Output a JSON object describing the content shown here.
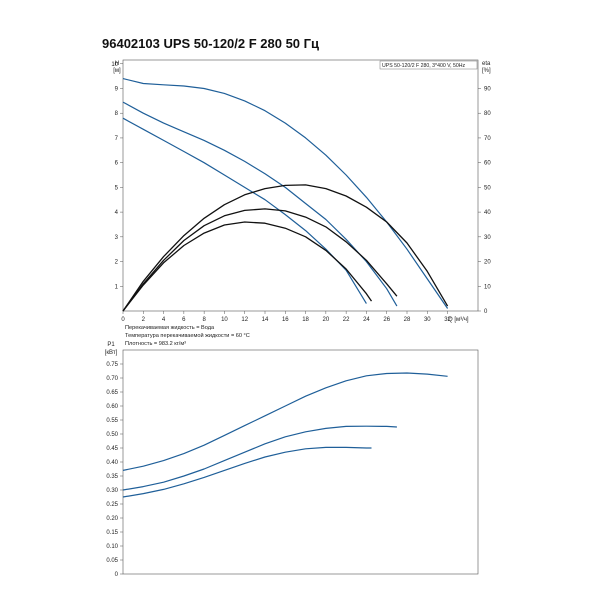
{
  "title": "96402103 UPS 50-120/2 F 280 50 Гц",
  "chart_data": [
    {
      "type": "line",
      "legend_box": "UPS 50-120/2 F 280, 3*400 V, 50Hz",
      "y_label_top": "H",
      "y_unit": "[м]",
      "y2_label_top": "eta",
      "y2_unit": "[%]",
      "x_label": "Q [м³/ч]",
      "xlim": [
        0,
        35
      ],
      "ylim": [
        0,
        10
      ],
      "y2lim": [
        0,
        100
      ],
      "x_ticks": [
        "0",
        "2",
        "4",
        "6",
        "8",
        "10",
        "12",
        "14",
        "16",
        "18",
        "20",
        "22",
        "24",
        "26",
        "28",
        "30",
        "32"
      ],
      "y_ticks": [
        "1",
        "2",
        "3",
        "4",
        "5",
        "6",
        "7",
        "8",
        "9",
        "10"
      ],
      "y2_ticks": [
        "0",
        "10",
        "20",
        "30",
        "40",
        "50",
        "60",
        "70",
        "80",
        "90"
      ],
      "notes": [
        "Перекачиваемая жидкость = Вода",
        "Температура перекачиваемой жидкости = 60 °C",
        "Плотность = 983.2 кг/м³"
      ],
      "series": [
        {
          "kind": "head",
          "color": "#1f5f99",
          "points": [
            [
              0,
              9.4
            ],
            [
              2,
              9.2
            ],
            [
              4,
              9.15
            ],
            [
              6,
              9.1
            ],
            [
              8,
              9.0
            ],
            [
              10,
              8.8
            ],
            [
              12,
              8.5
            ],
            [
              14,
              8.1
            ],
            [
              16,
              7.6
            ],
            [
              18,
              7.0
            ],
            [
              20,
              6.3
            ],
            [
              22,
              5.5
            ],
            [
              24,
              4.6
            ],
            [
              26,
              3.6
            ],
            [
              28,
              2.5
            ],
            [
              30,
              1.3
            ],
            [
              32,
              0.1
            ]
          ]
        },
        {
          "kind": "head",
          "color": "#1f5f99",
          "points": [
            [
              0,
              8.45
            ],
            [
              2,
              8.0
            ],
            [
              4,
              7.6
            ],
            [
              6,
              7.25
            ],
            [
              8,
              6.9
            ],
            [
              10,
              6.5
            ],
            [
              12,
              6.05
            ],
            [
              14,
              5.55
            ],
            [
              16,
              5.0
            ],
            [
              18,
              4.35
            ],
            [
              20,
              3.7
            ],
            [
              22,
              2.9
            ],
            [
              24,
              2.0
            ],
            [
              26,
              0.9
            ],
            [
              27,
              0.2
            ]
          ]
        },
        {
          "kind": "head",
          "color": "#1f5f99",
          "points": [
            [
              0,
              7.8
            ],
            [
              2,
              7.35
            ],
            [
              4,
              6.9
            ],
            [
              6,
              6.45
            ],
            [
              8,
              6.0
            ],
            [
              10,
              5.5
            ],
            [
              12,
              5.0
            ],
            [
              14,
              4.5
            ],
            [
              16,
              3.9
            ],
            [
              18,
              3.25
            ],
            [
              20,
              2.5
            ],
            [
              22,
              1.65
            ],
            [
              24,
              0.3
            ]
          ]
        },
        {
          "kind": "eta",
          "color": "#111111",
          "points": [
            [
              0,
              0
            ],
            [
              2,
              12
            ],
            [
              4,
              22
            ],
            [
              6,
              30.5
            ],
            [
              8,
              37.5
            ],
            [
              10,
              43
            ],
            [
              12,
              47
            ],
            [
              14,
              49.5
            ],
            [
              16,
              50.8
            ],
            [
              18,
              51
            ],
            [
              20,
              49.5
            ],
            [
              22,
              46.5
            ],
            [
              24,
              42
            ],
            [
              26,
              36
            ],
            [
              28,
              27.5
            ],
            [
              30,
              16
            ],
            [
              32,
              2
            ]
          ]
        },
        {
          "kind": "eta",
          "color": "#111111",
          "points": [
            [
              0,
              0
            ],
            [
              2,
              11
            ],
            [
              4,
              20.5
            ],
            [
              6,
              28.5
            ],
            [
              8,
              34.5
            ],
            [
              10,
              38.5
            ],
            [
              12,
              40.7
            ],
            [
              14,
              41.3
            ],
            [
              16,
              40.5
            ],
            [
              18,
              38
            ],
            [
              20,
              34
            ],
            [
              22,
              28
            ],
            [
              24,
              20.5
            ],
            [
              26,
              11
            ],
            [
              27,
              6
            ]
          ]
        },
        {
          "kind": "eta",
          "color": "#111111",
          "points": [
            [
              0,
              0
            ],
            [
              2,
              10.5
            ],
            [
              4,
              19.5
            ],
            [
              6,
              26.5
            ],
            [
              8,
              31.5
            ],
            [
              10,
              34.8
            ],
            [
              12,
              36
            ],
            [
              14,
              35.5
            ],
            [
              16,
              33.5
            ],
            [
              18,
              30
            ],
            [
              20,
              24.5
            ],
            [
              22,
              17
            ],
            [
              24,
              7
            ],
            [
              24.5,
              4
            ]
          ]
        }
      ]
    },
    {
      "type": "line",
      "y_label_top": "P1",
      "y_unit": "[кВт]",
      "xlim": [
        0,
        35
      ],
      "ylim": [
        0,
        0.8
      ],
      "y_ticks": [
        "0",
        "0.05",
        "0.10",
        "0.15",
        "0.20",
        "0.25",
        "0.30",
        "0.35",
        "0.40",
        "0.45",
        "0.50",
        "0.55",
        "0.60",
        "0.65",
        "0.70",
        "0.75"
      ],
      "series": [
        {
          "color": "#1f5f99",
          "points": [
            [
              0,
              0.37
            ],
            [
              2,
              0.385
            ],
            [
              4,
              0.405
            ],
            [
              6,
              0.43
            ],
            [
              8,
              0.46
            ],
            [
              10,
              0.495
            ],
            [
              12,
              0.53
            ],
            [
              14,
              0.565
            ],
            [
              16,
              0.6
            ],
            [
              18,
              0.635
            ],
            [
              20,
              0.665
            ],
            [
              22,
              0.69
            ],
            [
              24,
              0.708
            ],
            [
              26,
              0.716
            ],
            [
              28,
              0.718
            ],
            [
              30,
              0.714
            ],
            [
              32,
              0.706
            ]
          ]
        },
        {
          "color": "#1f5f99",
          "points": [
            [
              0,
              0.3
            ],
            [
              2,
              0.312
            ],
            [
              4,
              0.328
            ],
            [
              6,
              0.35
            ],
            [
              8,
              0.375
            ],
            [
              10,
              0.405
            ],
            [
              12,
              0.435
            ],
            [
              14,
              0.465
            ],
            [
              16,
              0.49
            ],
            [
              18,
              0.508
            ],
            [
              20,
              0.52
            ],
            [
              22,
              0.527
            ],
            [
              24,
              0.528
            ],
            [
              26,
              0.527
            ],
            [
              27,
              0.525
            ]
          ]
        },
        {
          "color": "#1f5f99",
          "points": [
            [
              0,
              0.275
            ],
            [
              2,
              0.287
            ],
            [
              4,
              0.302
            ],
            [
              6,
              0.322
            ],
            [
              8,
              0.345
            ],
            [
              10,
              0.37
            ],
            [
              12,
              0.395
            ],
            [
              14,
              0.418
            ],
            [
              16,
              0.435
            ],
            [
              18,
              0.447
            ],
            [
              20,
              0.452
            ],
            [
              22,
              0.452
            ],
            [
              24,
              0.45
            ],
            [
              24.5,
              0.45
            ]
          ]
        }
      ]
    }
  ]
}
